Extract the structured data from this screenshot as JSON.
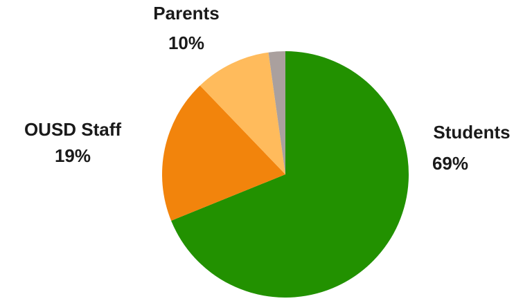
{
  "chart_data": {
    "type": "pie",
    "title": "",
    "start_angle_deg": 0,
    "direction": "clockwise",
    "legend": "none",
    "slices": [
      {
        "key": "students",
        "name": "Students",
        "value": 69,
        "label": "Students",
        "pct_label": "69%",
        "color": "#229100"
      },
      {
        "key": "ousd-staff",
        "name": "OUSD Staff",
        "value": 19,
        "label": "OUSD Staff",
        "pct_label": "19%",
        "color": "#f2840c"
      },
      {
        "key": "parents",
        "name": "Parents",
        "value": 10,
        "label": "Parents",
        "pct_label": "10%",
        "color": "#ffbb5c"
      },
      {
        "key": "other",
        "name": "",
        "value": 2.2,
        "label": "",
        "pct_label": "",
        "color": "#aaa09e"
      }
    ]
  }
}
